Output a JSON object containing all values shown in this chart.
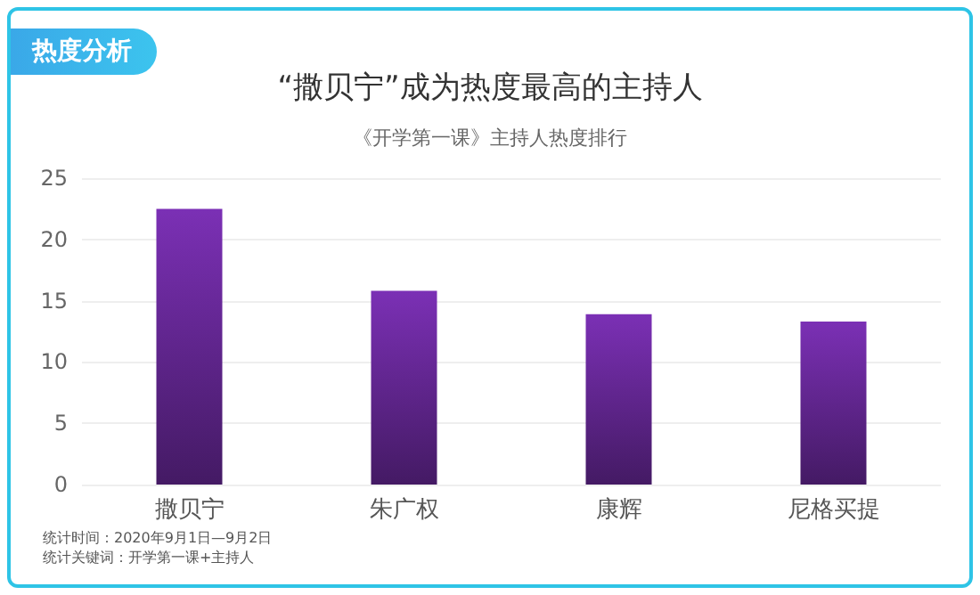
{
  "chart_data": {
    "type": "bar",
    "title": "“撒贝宁”成为热度最高的主持人",
    "subtitle": "《开学第一课》主持人热度排行",
    "categories": [
      "撒贝宁",
      "朱广权",
      "康辉",
      "尼格买提"
    ],
    "values": [
      22.5,
      15.8,
      13.9,
      13.3
    ],
    "color": "#7b30b5",
    "ylim": [
      0,
      25
    ],
    "yticks": [
      0,
      5,
      10,
      15,
      20,
      25
    ],
    "grid": "y",
    "annotations": [
      "热度分析",
      "统计时间：2020年9月1日—9月2日",
      "统计关键词：开学第一课+主持人"
    ]
  }
}
